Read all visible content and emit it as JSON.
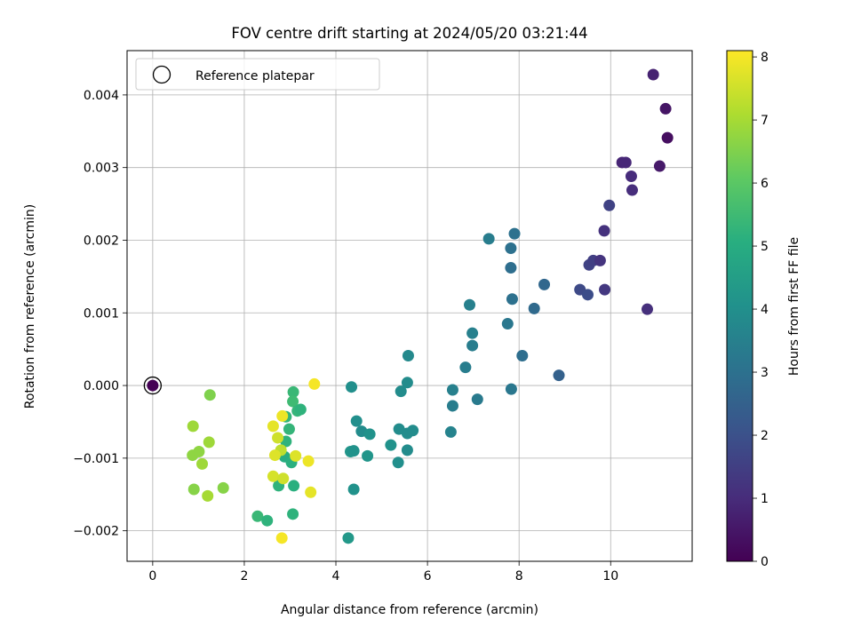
{
  "chart_data": {
    "type": "scatter",
    "title": "FOV centre drift starting at 2024/05/20 03:21:44",
    "xlabel": "Angular distance from reference (arcmin)",
    "ylabel": "Rotation from reference (arcmin)",
    "xlim": [
      -0.56,
      11.78
    ],
    "ylim": [
      -0.00242,
      0.00461
    ],
    "x_ticks": [
      0,
      2,
      4,
      6,
      8,
      10
    ],
    "x_tick_labels": [
      "0",
      "2",
      "4",
      "6",
      "8",
      "10"
    ],
    "y_ticks": [
      -0.002,
      -0.001,
      0.0,
      0.001,
      0.002,
      0.003,
      0.004
    ],
    "y_tick_labels": [
      "−0.002",
      "−0.001",
      "0.000",
      "0.001",
      "0.002",
      "0.003",
      "0.004"
    ],
    "grid": true,
    "legend": {
      "location": "upper-left",
      "entries": [
        {
          "label": "Reference platepar",
          "marker": "open-circle"
        }
      ]
    },
    "reference_point": {
      "x": 0,
      "y": 0,
      "color_value": 0
    },
    "colorbar": {
      "label": "Hours from first FF file",
      "colormap": "viridis",
      "range": [
        0,
        8.1
      ],
      "ticks": [
        0,
        1,
        2,
        3,
        4,
        5,
        6,
        7,
        8
      ],
      "tick_labels": [
        "0",
        "1",
        "2",
        "3",
        "4",
        "5",
        "6",
        "7",
        "8"
      ]
    },
    "points": [
      {
        "x": 10.93,
        "y": 0.00428,
        "c": 0.75
      },
      {
        "x": 11.2,
        "y": 0.00381,
        "c": 0.45
      },
      {
        "x": 11.24,
        "y": 0.00341,
        "c": 0.3
      },
      {
        "x": 11.07,
        "y": 0.00302,
        "c": 0.55
      },
      {
        "x": 10.25,
        "y": 0.00307,
        "c": 0.85
      },
      {
        "x": 10.33,
        "y": 0.00307,
        "c": 0.9
      },
      {
        "x": 10.45,
        "y": 0.00288,
        "c": 1.0
      },
      {
        "x": 10.47,
        "y": 0.00269,
        "c": 1.05
      },
      {
        "x": 9.97,
        "y": 0.00248,
        "c": 1.6
      },
      {
        "x": 9.86,
        "y": 0.00213,
        "c": 1.15
      },
      {
        "x": 9.53,
        "y": 0.00166,
        "c": 1.6
      },
      {
        "x": 9.62,
        "y": 0.00172,
        "c": 1.5
      },
      {
        "x": 9.77,
        "y": 0.00172,
        "c": 1.2
      },
      {
        "x": 9.33,
        "y": 0.00132,
        "c": 1.8
      },
      {
        "x": 9.5,
        "y": 0.00125,
        "c": 1.9
      },
      {
        "x": 9.87,
        "y": 0.00132,
        "c": 1.3
      },
      {
        "x": 10.8,
        "y": 0.00105,
        "c": 1.1
      },
      {
        "x": 7.34,
        "y": 0.00202,
        "c": 3.4
      },
      {
        "x": 7.9,
        "y": 0.00209,
        "c": 3.0
      },
      {
        "x": 7.82,
        "y": 0.00189,
        "c": 3.0
      },
      {
        "x": 7.82,
        "y": 0.00162,
        "c": 2.9
      },
      {
        "x": 8.55,
        "y": 0.00139,
        "c": 2.7
      },
      {
        "x": 7.85,
        "y": 0.00119,
        "c": 3.0
      },
      {
        "x": 8.33,
        "y": 0.00106,
        "c": 2.8
      },
      {
        "x": 6.92,
        "y": 0.00111,
        "c": 3.5
      },
      {
        "x": 7.75,
        "y": 0.00085,
        "c": 3.2
      },
      {
        "x": 6.98,
        "y": 0.00072,
        "c": 3.5
      },
      {
        "x": 6.98,
        "y": 0.00055,
        "c": 3.4
      },
      {
        "x": 8.07,
        "y": 0.00041,
        "c": 2.9
      },
      {
        "x": 6.83,
        "y": 0.00025,
        "c": 3.4
      },
      {
        "x": 8.87,
        "y": 0.00014,
        "c": 2.5
      },
      {
        "x": 7.83,
        "y": -5e-05,
        "c": 3.2
      },
      {
        "x": 6.55,
        "y": -6e-05,
        "c": 3.5
      },
      {
        "x": 7.09,
        "y": -0.00019,
        "c": 3.3
      },
      {
        "x": 6.55,
        "y": -0.00028,
        "c": 3.4
      },
      {
        "x": 6.51,
        "y": -0.00064,
        "c": 3.6
      },
      {
        "x": 5.58,
        "y": 0.00041,
        "c": 3.8
      },
      {
        "x": 5.56,
        "y": 4e-05,
        "c": 3.9
      },
      {
        "x": 5.42,
        "y": -8e-05,
        "c": 3.9
      },
      {
        "x": 4.34,
        "y": -2e-05,
        "c": 4.0
      },
      {
        "x": 4.45,
        "y": -0.00049,
        "c": 4.0
      },
      {
        "x": 4.56,
        "y": -0.00063,
        "c": 3.9
      },
      {
        "x": 4.74,
        "y": -0.00067,
        "c": 4.1
      },
      {
        "x": 5.38,
        "y": -0.0006,
        "c": 3.9
      },
      {
        "x": 5.56,
        "y": -0.00066,
        "c": 3.9
      },
      {
        "x": 5.68,
        "y": -0.00062,
        "c": 3.9
      },
      {
        "x": 5.2,
        "y": -0.00082,
        "c": 4.1
      },
      {
        "x": 4.32,
        "y": -0.00091,
        "c": 4.2
      },
      {
        "x": 4.39,
        "y": -0.0009,
        "c": 4.1
      },
      {
        "x": 4.69,
        "y": -0.00097,
        "c": 4.2
      },
      {
        "x": 5.56,
        "y": -0.00089,
        "c": 3.9
      },
      {
        "x": 5.36,
        "y": -0.00106,
        "c": 4.0
      },
      {
        "x": 4.39,
        "y": -0.00143,
        "c": 4.1
      },
      {
        "x": 4.27,
        "y": -0.0021,
        "c": 4.3
      },
      {
        "x": 3.07,
        "y": -9e-05,
        "c": 5.4
      },
      {
        "x": 3.06,
        "y": -0.00022,
        "c": 5.5
      },
      {
        "x": 3.16,
        "y": -0.00035,
        "c": 5.3
      },
      {
        "x": 3.23,
        "y": -0.00033,
        "c": 5.2
      },
      {
        "x": 2.91,
        "y": -0.00043,
        "c": 5.3
      },
      {
        "x": 2.98,
        "y": -0.0006,
        "c": 5.3
      },
      {
        "x": 2.91,
        "y": -0.00077,
        "c": 5.2
      },
      {
        "x": 2.88,
        "y": -0.00098,
        "c": 5.0
      },
      {
        "x": 3.03,
        "y": -0.00106,
        "c": 5.1
      },
      {
        "x": 2.75,
        "y": -0.00138,
        "c": 5.2
      },
      {
        "x": 3.08,
        "y": -0.00138,
        "c": 5.1
      },
      {
        "x": 3.06,
        "y": -0.00177,
        "c": 5.2
      },
      {
        "x": 2.29,
        "y": -0.0018,
        "c": 5.4
      },
      {
        "x": 2.5,
        "y": -0.00186,
        "c": 5.2
      },
      {
        "x": 1.25,
        "y": -0.00013,
        "c": 6.5
      },
      {
        "x": 0.88,
        "y": -0.00056,
        "c": 6.9
      },
      {
        "x": 0.87,
        "y": -0.00096,
        "c": 6.7
      },
      {
        "x": 1.01,
        "y": -0.00091,
        "c": 6.7
      },
      {
        "x": 1.23,
        "y": -0.00078,
        "c": 6.9
      },
      {
        "x": 1.08,
        "y": -0.00108,
        "c": 6.9
      },
      {
        "x": 0.9,
        "y": -0.00143,
        "c": 6.6
      },
      {
        "x": 1.54,
        "y": -0.00141,
        "c": 6.6
      },
      {
        "x": 1.2,
        "y": -0.00152,
        "c": 7.0
      },
      {
        "x": 3.53,
        "y": 2e-05,
        "c": 8.0
      },
      {
        "x": 2.83,
        "y": -0.00042,
        "c": 7.9
      },
      {
        "x": 2.63,
        "y": -0.00056,
        "c": 7.8
      },
      {
        "x": 2.73,
        "y": -0.00072,
        "c": 7.5
      },
      {
        "x": 2.8,
        "y": -0.00089,
        "c": 7.3
      },
      {
        "x": 2.67,
        "y": -0.00096,
        "c": 7.7
      },
      {
        "x": 3.12,
        "y": -0.00097,
        "c": 7.7
      },
      {
        "x": 3.4,
        "y": -0.00104,
        "c": 7.9
      },
      {
        "x": 2.63,
        "y": -0.00125,
        "c": 7.6
      },
      {
        "x": 2.85,
        "y": -0.00128,
        "c": 7.5
      },
      {
        "x": 3.45,
        "y": -0.00147,
        "c": 7.8
      },
      {
        "x": 2.82,
        "y": -0.0021,
        "c": 8.0
      }
    ]
  }
}
